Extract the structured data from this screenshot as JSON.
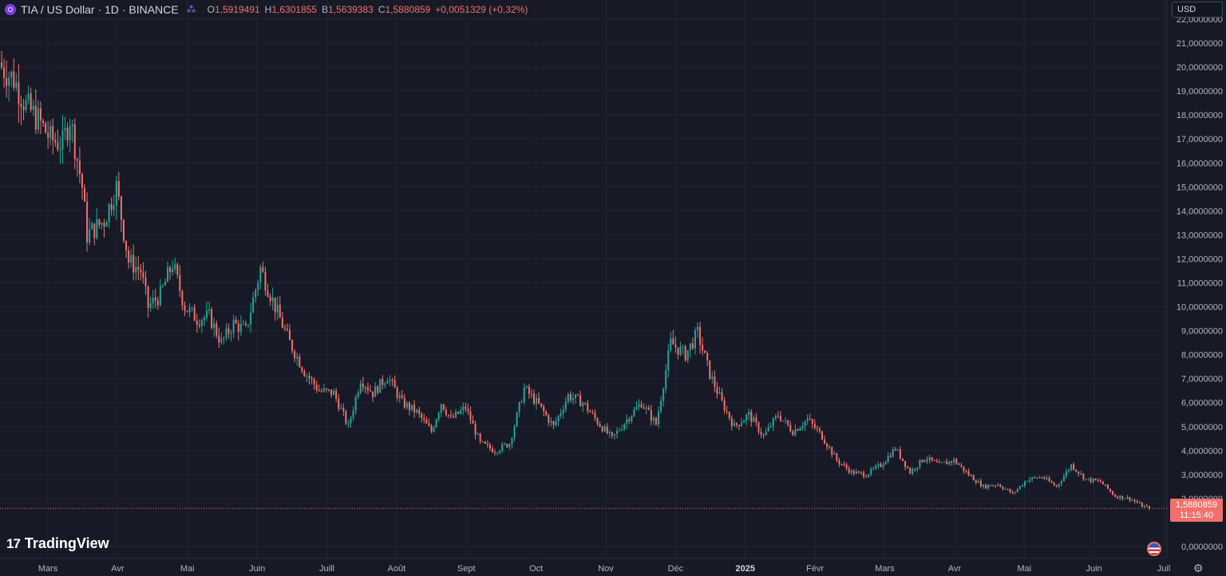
{
  "header": {
    "symbol_title": "TIA / US Dollar · 1D · BINANCE",
    "open_label": "O",
    "open_value": "1,5919491",
    "high_label": "H",
    "high_value": "1,6301855",
    "low_label": "B",
    "low_value": "1,5639383",
    "close_label": "C",
    "close_value": "1,5880859",
    "change": "+0,0051329 (+0,32%)"
  },
  "currency": "USD",
  "last_price": {
    "value": "1,5880859",
    "countdown": "11:15:40"
  },
  "brand": "TradingView",
  "colors": {
    "up": "#26a69a",
    "down": "#f0716b",
    "background": "#171a26",
    "grid": "#22252f"
  },
  "icons": {
    "symbol": "tia-logo-icon",
    "share": "share-icon",
    "region": "flag-icon",
    "settings": "gear-icon"
  },
  "chart_data": {
    "type": "candlestick",
    "symbol": "TIA/USD",
    "interval": "1D",
    "exchange": "BINANCE",
    "y_axis": {
      "ylim": [
        -0.5,
        22.8
      ],
      "ticks": [
        "0,0000000",
        "2,0000000",
        "3,0000000",
        "4,0000000",
        "5,0000000",
        "6,0000000",
        "7,0000000",
        "8,0000000",
        "9,0000000",
        "10,0000000",
        "11,0000000",
        "12,0000000",
        "13,0000000",
        "14,0000000",
        "15,0000000",
        "16,0000000",
        "17,0000000",
        "18,0000000",
        "19,0000000",
        "20,0000000",
        "21,0000000",
        "22,0000000"
      ]
    },
    "x_axis": {
      "labels": [
        "Mars",
        "Avr",
        "Mai",
        "Juin",
        "Juill",
        "Août",
        "Sept",
        "Oct",
        "Nov",
        "Déc",
        "2025",
        "Févr",
        "Mars",
        "Avr",
        "Mai",
        "Juin",
        "Juil"
      ],
      "bold_label": "2025"
    },
    "last_close": 1.5880859,
    "grid": true,
    "price_anchors": [
      [
        0,
        20.0
      ],
      [
        5,
        19.5
      ],
      [
        10,
        18.4
      ],
      [
        15,
        17.8
      ],
      [
        20,
        17.0
      ],
      [
        25,
        16.8
      ],
      [
        28,
        17.9
      ],
      [
        33,
        15.0
      ],
      [
        35,
        13.0
      ],
      [
        42,
        13.6
      ],
      [
        47,
        15.0
      ],
      [
        52,
        11.9
      ],
      [
        57,
        11.5
      ],
      [
        60,
        10.0
      ],
      [
        65,
        10.5
      ],
      [
        70,
        11.8
      ],
      [
        75,
        10.0
      ],
      [
        80,
        9.5
      ],
      [
        85,
        9.6
      ],
      [
        90,
        8.5
      ],
      [
        95,
        9.3
      ],
      [
        100,
        9.0
      ],
      [
        106,
        11.6
      ],
      [
        112,
        10.0
      ],
      [
        118,
        8.5
      ],
      [
        124,
        7.3
      ],
      [
        130,
        6.5
      ],
      [
        136,
        6.4
      ],
      [
        142,
        5.0
      ],
      [
        147,
        7.0
      ],
      [
        152,
        6.4
      ],
      [
        158,
        7.1
      ],
      [
        164,
        6.0
      ],
      [
        170,
        5.6
      ],
      [
        176,
        4.8
      ],
      [
        180,
        6.0
      ],
      [
        184,
        5.3
      ],
      [
        190,
        5.8
      ],
      [
        196,
        4.3
      ],
      [
        202,
        4.0
      ],
      [
        208,
        4.3
      ],
      [
        214,
        6.6
      ],
      [
        220,
        5.9
      ],
      [
        226,
        5.0
      ],
      [
        232,
        6.3
      ],
      [
        238,
        6.0
      ],
      [
        244,
        5.2
      ],
      [
        250,
        4.5
      ],
      [
        256,
        5.3
      ],
      [
        262,
        6.0
      ],
      [
        268,
        5.1
      ],
      [
        274,
        8.5
      ],
      [
        280,
        8.0
      ],
      [
        285,
        8.9
      ],
      [
        290,
        7.2
      ],
      [
        295,
        6.0
      ],
      [
        300,
        5.0
      ],
      [
        306,
        5.5
      ],
      [
        312,
        4.6
      ],
      [
        318,
        5.5
      ],
      [
        324,
        4.8
      ],
      [
        330,
        5.3
      ],
      [
        336,
        4.6
      ],
      [
        342,
        3.6
      ],
      [
        348,
        3.1
      ],
      [
        354,
        3.0
      ],
      [
        360,
        3.4
      ],
      [
        366,
        4.1
      ],
      [
        372,
        3.1
      ],
      [
        378,
        3.7
      ],
      [
        384,
        3.4
      ],
      [
        390,
        3.6
      ],
      [
        396,
        3.0
      ],
      [
        402,
        2.5
      ],
      [
        408,
        2.6
      ],
      [
        414,
        2.2
      ],
      [
        420,
        2.8
      ],
      [
        426,
        2.9
      ],
      [
        432,
        2.5
      ],
      [
        438,
        3.4
      ],
      [
        444,
        2.8
      ],
      [
        450,
        2.7
      ],
      [
        456,
        2.1
      ],
      [
        462,
        2.0
      ],
      [
        467,
        1.7
      ],
      [
        470,
        1.59
      ]
    ]
  }
}
